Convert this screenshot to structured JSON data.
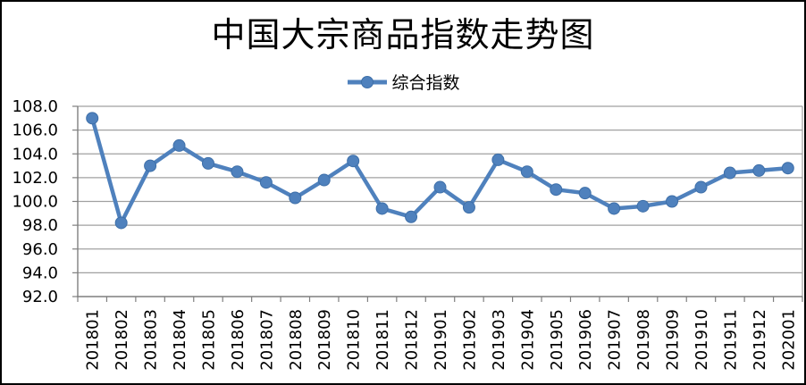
{
  "chart": {
    "title": "中国大宗商品指数走势图",
    "legend_label": "综合指数",
    "colors": {
      "series": "#4f81bd",
      "series_edge": "#3e6fa8",
      "gridline": "#a0a0a0",
      "axis": "#7f7f7f",
      "text": "#000000",
      "border": "#000000"
    }
  },
  "chart_data": {
    "type": "line",
    "title": "中国大宗商品指数走势图",
    "categories": [
      "201801",
      "201802",
      "201803",
      "201804",
      "201805",
      "201806",
      "201807",
      "201808",
      "201809",
      "201810",
      "201811",
      "201812",
      "201901",
      "201902",
      "201903",
      "201904",
      "201905",
      "201906",
      "201907",
      "201908",
      "201909",
      "201910",
      "201911",
      "201912",
      "202001"
    ],
    "series": [
      {
        "name": "综合指数",
        "values": [
          107.0,
          98.2,
          103.0,
          104.7,
          103.2,
          102.5,
          101.6,
          100.3,
          101.8,
          103.4,
          99.4,
          98.7,
          101.2,
          99.5,
          103.5,
          102.5,
          101.0,
          100.7,
          99.4,
          99.6,
          100.0,
          101.2,
          102.4,
          102.6,
          102.8
        ]
      }
    ],
    "ylim": [
      92.0,
      108.0
    ],
    "y_tick_step": 2,
    "y_tick_labels": [
      "92.0",
      "94.0",
      "96.0",
      "98.0",
      "100.0",
      "102.0",
      "104.0",
      "106.0",
      "108.0"
    ],
    "grid": true,
    "legend_position": "top",
    "marker": "circle"
  }
}
